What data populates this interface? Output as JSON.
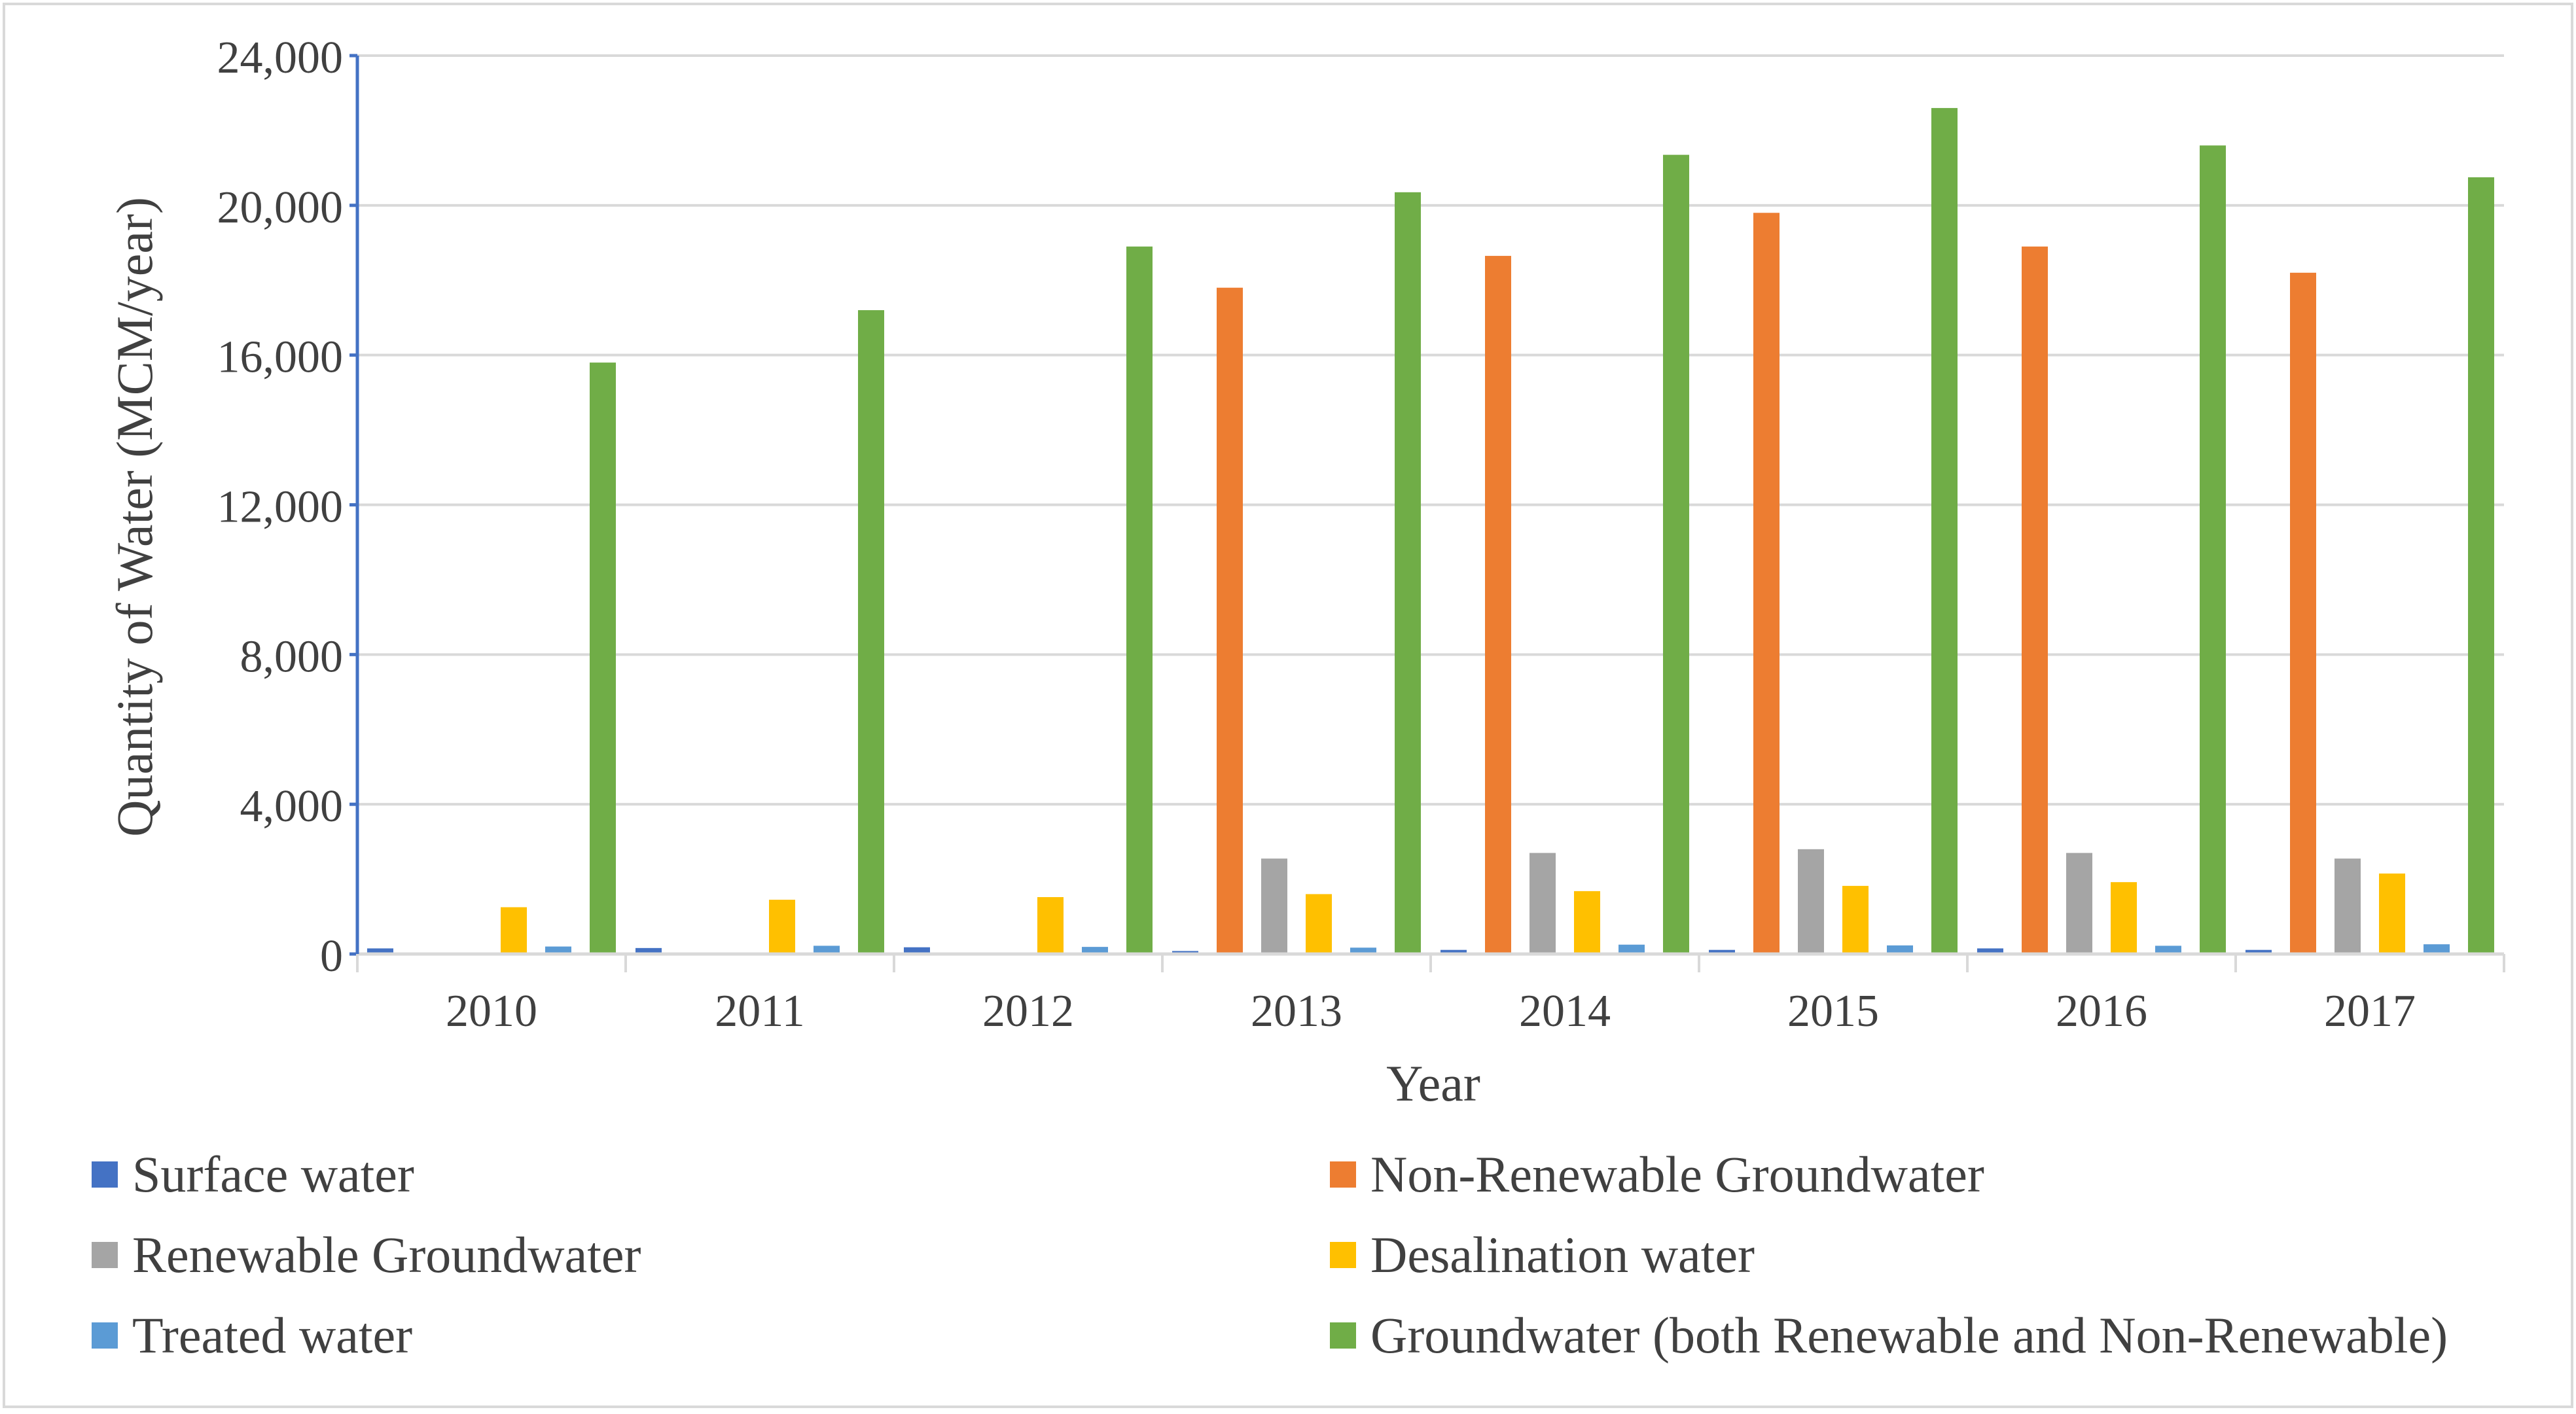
{
  "chart_data": {
    "type": "bar",
    "title": "",
    "xlabel": "Year",
    "ylabel": "Quantity of Water (MCM/year)",
    "ylim": [
      0,
      24000
    ],
    "yticks": [
      0,
      4000,
      8000,
      12000,
      16000,
      20000,
      24000
    ],
    "ytick_labels": [
      "0",
      "4,000",
      "8,000",
      "12,000",
      "16,000",
      "20,000",
      "24,000"
    ],
    "grid": true,
    "legend_position": "bottom",
    "categories": [
      "2010",
      "2011",
      "2012",
      "2013",
      "2014",
      "2015",
      "2016",
      "2017"
    ],
    "series": [
      {
        "name": "Surface water",
        "color": "#4472C4",
        "values": [
          150,
          160,
          180,
          80,
          110,
          110,
          150,
          110
        ]
      },
      {
        "name": "Non-Renewable Groundwater",
        "color": "#ED7D31",
        "values": [
          0,
          0,
          0,
          17800,
          18650,
          19800,
          18900,
          18200
        ]
      },
      {
        "name": "Renewable Groundwater",
        "color": "#A5A5A5",
        "values": [
          0,
          0,
          0,
          2550,
          2700,
          2800,
          2700,
          2550
        ]
      },
      {
        "name": "Desalination water",
        "color": "#FFC000",
        "values": [
          1250,
          1450,
          1520,
          1600,
          1680,
          1820,
          1920,
          2150
        ]
      },
      {
        "name": "Treated water",
        "color": "#5B9BD5",
        "values": [
          200,
          220,
          190,
          170,
          250,
          230,
          220,
          260
        ]
      },
      {
        "name": "Groundwater (both Renewable and Non-Renewable)",
        "color": "#70AD47",
        "values": [
          15800,
          17200,
          18900,
          20350,
          21350,
          22600,
          21600,
          20750
        ]
      }
    ]
  }
}
